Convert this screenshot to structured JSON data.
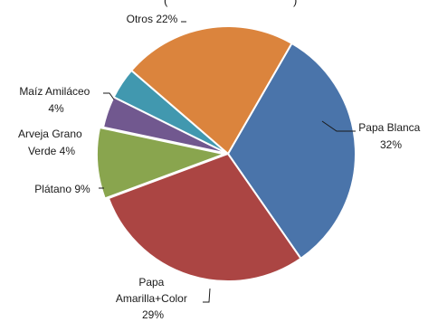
{
  "chart_data": {
    "type": "pie",
    "title": "(",
    "title_tail": ")",
    "categories": [
      "Papa Blanca",
      "Papa Amarilla+Color",
      "Plátano",
      "Arveja Grano Verde",
      "Maíz Amiláceo",
      "Otros"
    ],
    "values": [
      32,
      29,
      9,
      4,
      4,
      22
    ],
    "unit": "%",
    "legend": "none",
    "colors": [
      "#4a74aa",
      "#ab4543",
      "#89a54e",
      "#71588f",
      "#4198af",
      "#db843d"
    ],
    "labels": {
      "papa_blanca": [
        "Papa Blanca",
        "32%"
      ],
      "papa_amarilla": [
        "Papa",
        "Amarilla+Color",
        "29%"
      ],
      "platano": [
        "Plátano 9%"
      ],
      "arveja": [
        "Arveja Grano",
        "Verde 4%"
      ],
      "maiz": [
        "Maíz Amiláceo",
        "4%"
      ],
      "otros": [
        "Otros 22%"
      ]
    }
  }
}
